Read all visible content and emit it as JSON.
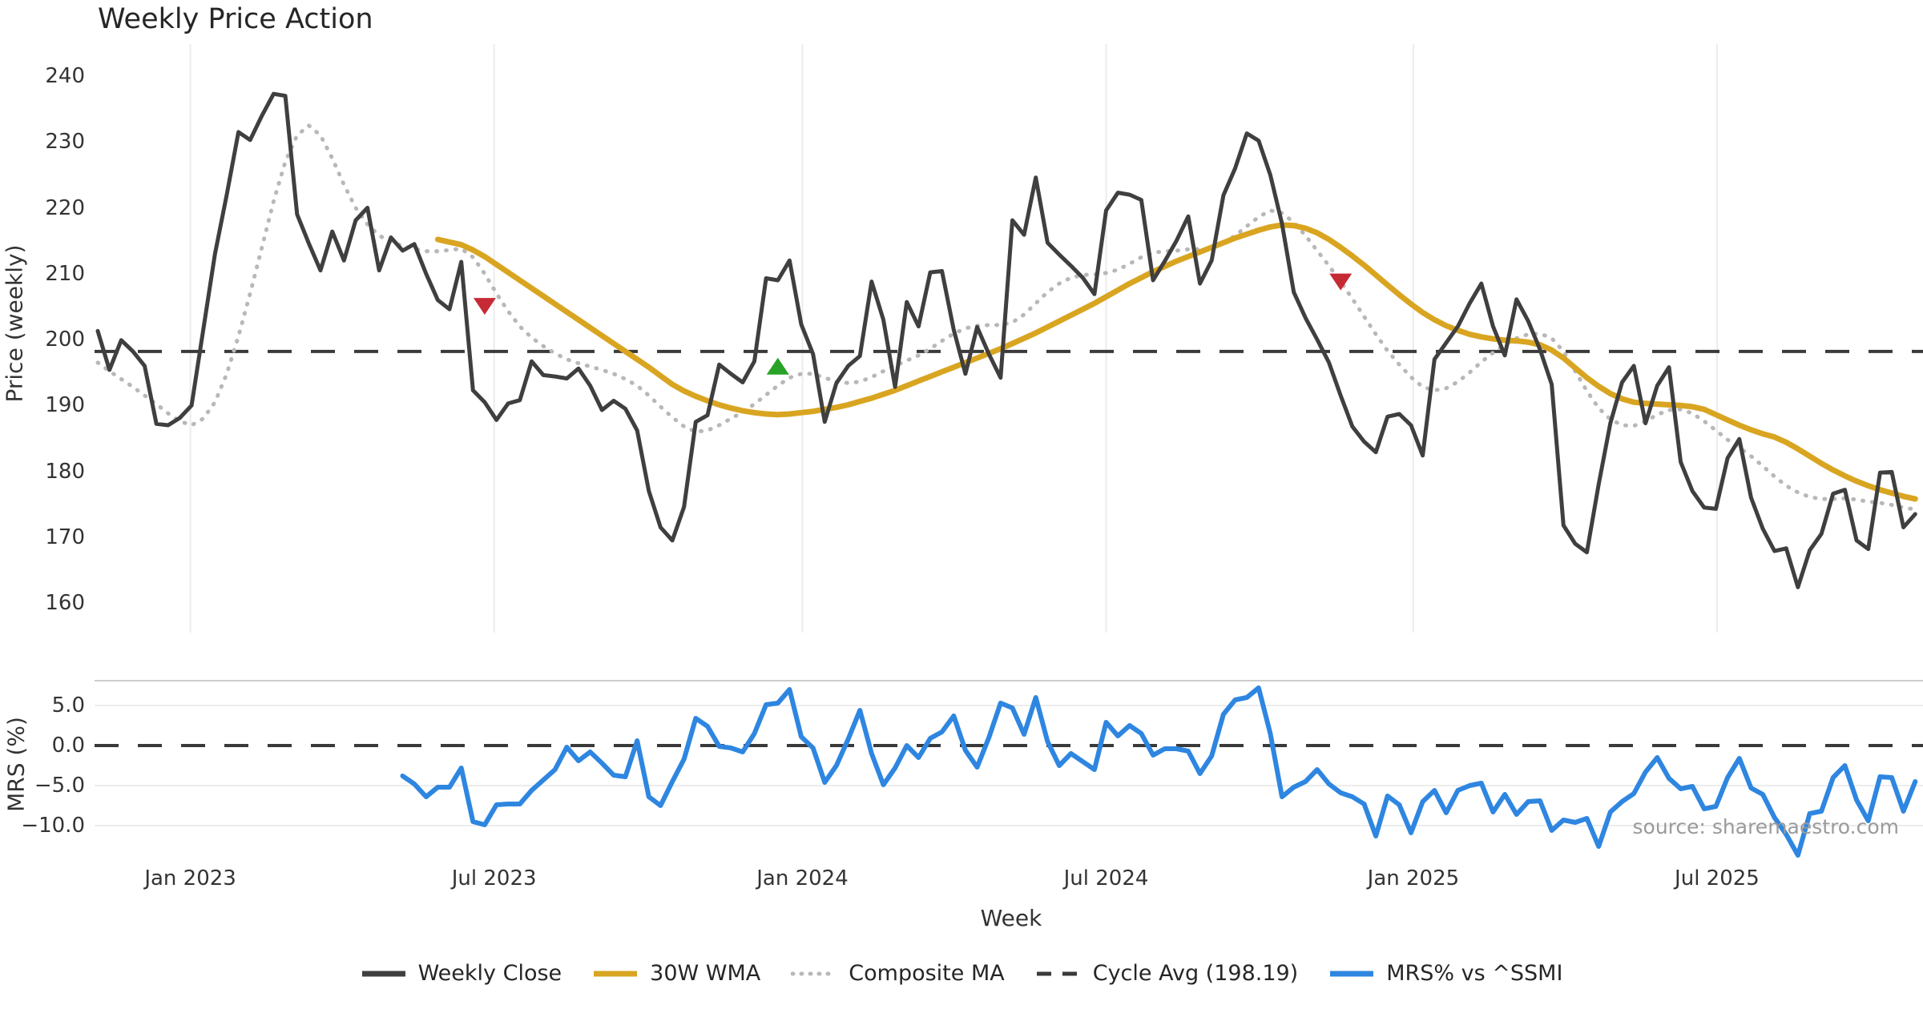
{
  "title": "Weekly Price Action",
  "source": "source: sharemaestro.com",
  "price_panel": {
    "ylabel": "Price (weekly)",
    "yticks": [
      240,
      230,
      220,
      210,
      200,
      190,
      180,
      170,
      160
    ]
  },
  "mrs_panel": {
    "ylabel": "MRS (%)",
    "ytick_labels": [
      "5.0",
      "0.0",
      "−5.0",
      "−10.0"
    ],
    "ytick_values": [
      5,
      0,
      -5,
      -10
    ]
  },
  "xaxis": {
    "label": "Week",
    "ticks": [
      {
        "label": "Jan 2023",
        "week": 7.9
      },
      {
        "label": "Jul 2023",
        "week": 33.8
      },
      {
        "label": "Jan 2024",
        "week": 60.1
      },
      {
        "label": "Jul 2024",
        "week": 86.0
      },
      {
        "label": "Jan 2025",
        "week": 112.2
      },
      {
        "label": "Jul 2025",
        "week": 138.1
      }
    ]
  },
  "legend": [
    {
      "label": "Weekly Close",
      "color": "#3f3f3f",
      "style": "solid"
    },
    {
      "label": "30W WMA",
      "color": "#d9a521",
      "style": "solid"
    },
    {
      "label": "Composite MA",
      "color": "#b8b8b8",
      "style": "dotted"
    },
    {
      "label": "Cycle Avg (198.19)",
      "color": "#3a3a3a",
      "style": "dashed"
    },
    {
      "label": "MRS% vs ^SSMI",
      "color": "#2e86e0",
      "style": "solid"
    }
  ],
  "chart_data": {
    "type": "line",
    "title": "Weekly Price Action",
    "xlabel": "Week",
    "x_start_date": "2022-11-06",
    "x_freq": "weekly",
    "cycle_avg": 198.19,
    "price_ylim": [
      155,
      245
    ],
    "mrs_ylim": [
      -14.5,
      8
    ],
    "grid": {
      "vertical_months": true,
      "mrs_horizontal": true
    },
    "series": [
      {
        "name": "Weekly Close",
        "panel": "price",
        "start_week": 0,
        "values": [
          201.3,
          195.4,
          199.9,
          198.2,
          196.0,
          187.2,
          187.0,
          188.1,
          190.0,
          201.5,
          213.0,
          222.0,
          231.5,
          230.3,
          234.0,
          237.3,
          237.0,
          219.0,
          214.6,
          210.5,
          216.4,
          212.0,
          218.1,
          220.0,
          210.5,
          215.5,
          213.5,
          214.5,
          210.0,
          206.0,
          204.6,
          211.8,
          192.3,
          190.5,
          187.8,
          190.3,
          190.8,
          196.7,
          194.6,
          194.4,
          194.1,
          195.6,
          193.0,
          189.3,
          190.7,
          189.5,
          186.2,
          177.0,
          171.5,
          169.5,
          174.6,
          187.5,
          188.5,
          196.2,
          194.8,
          193.5,
          196.7,
          209.3,
          209.0,
          212.0,
          202.3,
          197.8,
          187.5,
          193.4,
          196.0,
          197.5,
          208.8,
          203.0,
          192.8,
          205.7,
          202.0,
          210.2,
          210.4,
          201.5,
          194.8,
          201.9,
          197.8,
          194.2,
          218.1,
          215.9,
          224.6,
          214.7,
          212.9,
          211.2,
          209.4,
          206.9,
          219.6,
          222.3,
          222.0,
          221.2,
          209.0,
          211.9,
          215.0,
          218.7,
          208.5,
          212.0,
          221.9,
          226.0,
          231.3,
          230.2,
          225.0,
          217.6,
          207.2,
          203.3,
          200.0,
          196.5,
          191.5,
          186.8,
          184.5,
          182.9,
          188.3,
          188.7,
          187.0,
          182.4,
          197.0,
          199.5,
          202.0,
          205.5,
          208.5,
          202.0,
          197.6,
          206.1,
          202.8,
          198.5,
          193.2,
          171.8,
          169.0,
          167.7,
          178.0,
          187.3,
          193.5,
          196.0,
          187.3,
          193.0,
          195.8,
          181.4,
          177.0,
          174.5,
          174.3,
          182.0,
          184.9,
          176.0,
          171.3,
          167.9,
          168.3,
          162.4,
          168.0,
          170.5,
          176.6,
          177.2,
          169.5,
          168.2,
          179.8,
          179.9,
          171.5,
          173.5
        ]
      },
      {
        "name": "30W WMA",
        "panel": "price",
        "start_week": 29,
        "values": [
          215.2,
          214.8,
          214.4,
          213.6,
          212.6,
          211.4,
          210.2,
          209.0,
          207.8,
          206.6,
          205.4,
          204.2,
          203.0,
          201.8,
          200.6,
          199.4,
          198.2,
          197.0,
          195.8,
          194.5,
          193.2,
          192.2,
          191.4,
          190.7,
          190.1,
          189.6,
          189.2,
          188.9,
          188.7,
          188.6,
          188.7,
          188.9,
          189.1,
          189.4,
          189.7,
          190.1,
          190.6,
          191.1,
          191.7,
          192.3,
          193.0,
          193.7,
          194.4,
          195.1,
          195.8,
          196.5,
          197.2,
          197.9,
          198.6,
          199.4,
          200.2,
          201.0,
          201.9,
          202.8,
          203.7,
          204.6,
          205.5,
          206.5,
          207.5,
          208.5,
          209.4,
          210.3,
          211.1,
          211.9,
          212.6,
          213.3,
          214.0,
          214.7,
          215.4,
          216.0,
          216.6,
          217.1,
          217.4,
          217.3,
          216.9,
          216.2,
          215.2,
          214.0,
          212.7,
          211.3,
          209.8,
          208.3,
          206.8,
          205.4,
          204.1,
          203.0,
          202.1,
          201.4,
          200.8,
          200.4,
          200.1,
          199.9,
          199.8,
          199.6,
          199.2,
          198.4,
          197.2,
          195.7,
          194.2,
          192.9,
          191.8,
          191.0,
          190.5,
          190.3,
          190.2,
          190.1,
          190.0,
          189.8,
          189.4,
          188.6,
          187.8,
          187.0,
          186.3,
          185.7,
          185.2,
          184.4,
          183.4,
          182.3,
          181.2,
          180.2,
          179.3,
          178.5,
          177.8,
          177.2,
          176.7,
          176.2,
          175.8
        ]
      },
      {
        "name": "Composite MA",
        "panel": "price",
        "start_week": 0,
        "values": [
          196.5,
          195.2,
          194.0,
          192.8,
          191.5,
          190.2,
          188.8,
          187.6,
          187.0,
          188.0,
          190.5,
          194.8,
          200.5,
          207.0,
          214.0,
          221.0,
          227.0,
          231.0,
          232.5,
          231.0,
          227.5,
          223.5,
          220.0,
          217.5,
          215.8,
          214.8,
          214.2,
          213.8,
          213.4,
          213.4,
          213.6,
          213.8,
          212.5,
          210.0,
          207.0,
          204.3,
          202.0,
          200.3,
          199.0,
          197.9,
          197.0,
          196.4,
          195.9,
          195.4,
          194.8,
          194.0,
          193.0,
          191.5,
          189.8,
          188.2,
          186.8,
          186.0,
          186.2,
          187.0,
          188.0,
          189.0,
          190.2,
          191.6,
          193.0,
          194.2,
          194.8,
          194.8,
          194.2,
          193.6,
          193.4,
          193.6,
          194.3,
          195.2,
          196.0,
          196.8,
          197.6,
          198.6,
          199.8,
          200.9,
          201.7,
          202.1,
          202.2,
          202.2,
          202.6,
          203.8,
          205.5,
          207.2,
          208.5,
          209.4,
          209.8,
          209.9,
          210.1,
          210.6,
          211.5,
          212.5,
          213.2,
          213.4,
          213.5,
          213.7,
          213.7,
          213.9,
          214.6,
          215.8,
          217.2,
          218.6,
          219.6,
          219.2,
          217.8,
          215.8,
          213.5,
          211.2,
          208.8,
          206.2,
          203.5,
          200.8,
          198.3,
          196.2,
          194.3,
          192.8,
          192.3,
          192.6,
          193.6,
          195.0,
          196.6,
          198.0,
          199.2,
          200.2,
          200.8,
          200.9,
          200.2,
          198.2,
          195.2,
          192.2,
          189.6,
          187.9,
          187.0,
          186.9,
          187.6,
          188.6,
          189.3,
          189.4,
          188.8,
          187.6,
          186.2,
          184.8,
          183.6,
          182.3,
          180.8,
          179.2,
          177.8,
          176.8,
          176.1,
          175.8,
          175.8,
          175.9,
          175.7,
          175.4,
          175.2,
          174.9,
          174.5,
          174.2
        ]
      },
      {
        "name": "MRS% vs ^SSMI",
        "panel": "mrs",
        "start_week": 26,
        "values": [
          -3.8,
          -4.8,
          -6.4,
          -5.2,
          -5.2,
          -2.8,
          -9.5,
          -9.9,
          -7.4,
          -7.3,
          -7.3,
          -5.6,
          -4.3,
          -3.0,
          -0.2,
          -1.9,
          -0.8,
          -2.2,
          -3.7,
          -3.9,
          0.6,
          -6.4,
          -7.5,
          -4.5,
          -1.7,
          3.4,
          2.4,
          -0.1,
          -0.3,
          -0.8,
          1.5,
          5.1,
          5.3,
          7.0,
          1.1,
          -0.3,
          -4.6,
          -2.5,
          0.8,
          4.4,
          -1.0,
          -4.9,
          -2.8,
          0.0,
          -1.5,
          0.9,
          1.7,
          3.7,
          -0.6,
          -2.7,
          1.0,
          5.3,
          4.7,
          1.4,
          6.0,
          0.5,
          -2.5,
          -1.0,
          -2.0,
          -3.0,
          2.9,
          1.2,
          2.5,
          1.5,
          -1.2,
          -0.4,
          -0.4,
          -0.7,
          -3.5,
          -1.3,
          3.9,
          5.7,
          6.0,
          7.2,
          1.5,
          -6.4,
          -5.2,
          -4.5,
          -3.0,
          -4.8,
          -5.9,
          -6.4,
          -7.3,
          -11.3,
          -6.3,
          -7.4,
          -10.9,
          -7.0,
          -5.6,
          -8.4,
          -5.6,
          -5.0,
          -4.7,
          -8.3,
          -6.1,
          -8.6,
          -7.0,
          -6.9,
          -10.6,
          -9.3,
          -9.6,
          -9.1,
          -12.6,
          -8.3,
          -7.0,
          -6.0,
          -3.3,
          -1.5,
          -4.1,
          -5.4,
          -5.1,
          -7.9,
          -7.6,
          -4.0,
          -1.6,
          -5.3,
          -6.1,
          -9.0,
          -11.1,
          -13.7,
          -8.5,
          -8.2,
          -4.0,
          -2.5,
          -6.8,
          -9.4,
          -3.9,
          -4.0,
          -8.2,
          -4.5
        ]
      }
    ],
    "markers": [
      {
        "type": "sell",
        "shape": "triangle-down",
        "color": "#c62a35",
        "week": 33,
        "price": 205.1
      },
      {
        "type": "buy",
        "shape": "triangle-up",
        "color": "#27a327",
        "week": 58,
        "price": 195.9
      },
      {
        "type": "sell",
        "shape": "triangle-down",
        "color": "#c62a35",
        "week": 106,
        "price": 208.8
      }
    ]
  }
}
